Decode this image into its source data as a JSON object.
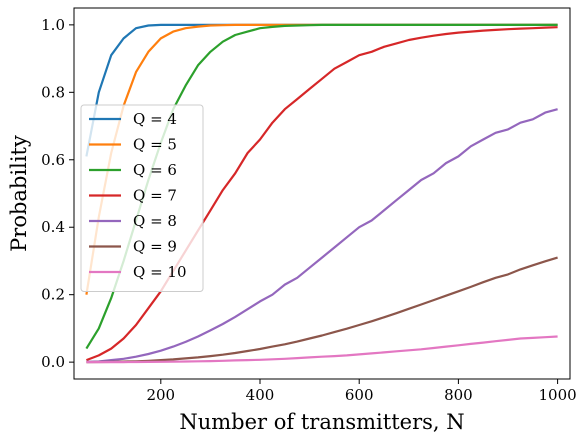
{
  "chart_data": {
    "type": "line",
    "title": "",
    "xlabel": "Number of transmitters, N",
    "ylabel": "Probability",
    "xlim": [
      25,
      1025
    ],
    "ylim": [
      -0.05,
      1.05
    ],
    "xticks": [
      200,
      400,
      600,
      800,
      1000
    ],
    "yticks": [
      0.0,
      0.2,
      0.4,
      0.6,
      0.8,
      1.0
    ],
    "xtick_labels": [
      "200",
      "400",
      "600",
      "800",
      "1000"
    ],
    "ytick_labels": [
      "0.0",
      "0.2",
      "0.4",
      "0.6",
      "0.8",
      "1.0"
    ],
    "grid": false,
    "legend_position": "center-left",
    "x": [
      50,
      75,
      100,
      125,
      150,
      175,
      200,
      225,
      250,
      275,
      300,
      325,
      350,
      375,
      400,
      425,
      450,
      475,
      500,
      525,
      550,
      575,
      600,
      625,
      650,
      675,
      700,
      725,
      750,
      775,
      800,
      825,
      850,
      875,
      900,
      925,
      950,
      975,
      1000
    ],
    "series": [
      {
        "name": "Q = 4",
        "color": "#1f77b4",
        "values": [
          0.61,
          0.8,
          0.91,
          0.96,
          0.99,
          0.998,
          1.0,
          1.0,
          1.0,
          1.0,
          1.0,
          1.0,
          1.0,
          1.0,
          1.0,
          1.0,
          1.0,
          1.0,
          1.0,
          1.0,
          1.0,
          1.0,
          1.0,
          1.0,
          1.0,
          1.0,
          1.0,
          1.0,
          1.0,
          1.0,
          1.0,
          1.0,
          1.0,
          1.0,
          1.0,
          1.0,
          1.0,
          1.0,
          1.0
        ]
      },
      {
        "name": "Q = 5",
        "color": "#ff7f0e",
        "values": [
          0.2,
          0.43,
          0.62,
          0.76,
          0.86,
          0.92,
          0.96,
          0.98,
          0.99,
          0.995,
          0.998,
          0.999,
          1.0,
          1.0,
          1.0,
          1.0,
          1.0,
          1.0,
          1.0,
          1.0,
          1.0,
          1.0,
          1.0,
          1.0,
          1.0,
          1.0,
          1.0,
          1.0,
          1.0,
          1.0,
          1.0,
          1.0,
          1.0,
          1.0,
          1.0,
          1.0,
          1.0,
          1.0,
          1.0
        ]
      },
      {
        "name": "Q = 6",
        "color": "#2ca02c",
        "values": [
          0.04,
          0.1,
          0.19,
          0.3,
          0.42,
          0.54,
          0.65,
          0.75,
          0.82,
          0.88,
          0.92,
          0.95,
          0.97,
          0.98,
          0.99,
          0.994,
          0.997,
          0.998,
          0.999,
          1.0,
          1.0,
          1.0,
          1.0,
          1.0,
          1.0,
          1.0,
          1.0,
          1.0,
          1.0,
          1.0,
          1.0,
          1.0,
          1.0,
          1.0,
          1.0,
          1.0,
          1.0,
          1.0,
          1.0
        ]
      },
      {
        "name": "Q = 7",
        "color": "#d62728",
        "values": [
          0.006,
          0.02,
          0.04,
          0.07,
          0.11,
          0.16,
          0.21,
          0.27,
          0.33,
          0.39,
          0.45,
          0.51,
          0.56,
          0.62,
          0.66,
          0.71,
          0.75,
          0.78,
          0.81,
          0.84,
          0.87,
          0.89,
          0.91,
          0.92,
          0.935,
          0.945,
          0.955,
          0.962,
          0.968,
          0.973,
          0.977,
          0.98,
          0.983,
          0.985,
          0.987,
          0.989,
          0.99,
          0.992,
          0.993
        ]
      },
      {
        "name": "Q = 8",
        "color": "#9467bd",
        "values": [
          0.0007,
          0.002,
          0.006,
          0.01,
          0.016,
          0.024,
          0.034,
          0.046,
          0.06,
          0.076,
          0.094,
          0.113,
          0.134,
          0.157,
          0.18,
          0.2,
          0.23,
          0.25,
          0.28,
          0.31,
          0.34,
          0.37,
          0.4,
          0.42,
          0.45,
          0.48,
          0.51,
          0.54,
          0.56,
          0.59,
          0.61,
          0.64,
          0.66,
          0.68,
          0.69,
          0.71,
          0.72,
          0.74,
          0.75
        ]
      },
      {
        "name": "Q = 9",
        "color": "#8c564b",
        "values": [
          0.0001,
          0.0003,
          0.0008,
          0.0015,
          0.0025,
          0.004,
          0.006,
          0.008,
          0.011,
          0.014,
          0.018,
          0.022,
          0.027,
          0.033,
          0.039,
          0.046,
          0.053,
          0.061,
          0.07,
          0.079,
          0.089,
          0.099,
          0.11,
          0.121,
          0.133,
          0.145,
          0.158,
          0.171,
          0.184,
          0.197,
          0.21,
          0.223,
          0.237,
          0.25,
          0.26,
          0.275,
          0.287,
          0.299,
          0.31
        ]
      },
      {
        "name": "Q = 10",
        "color": "#e377c2",
        "values": [
          0.0,
          0.0,
          0.0001,
          0.0002,
          0.0004,
          0.0007,
          0.001,
          0.0014,
          0.0019,
          0.0025,
          0.0032,
          0.004,
          0.005,
          0.006,
          0.007,
          0.0085,
          0.01,
          0.012,
          0.014,
          0.016,
          0.018,
          0.02,
          0.023,
          0.026,
          0.029,
          0.032,
          0.035,
          0.038,
          0.042,
          0.046,
          0.05,
          0.054,
          0.058,
          0.062,
          0.066,
          0.07,
          0.072,
          0.074,
          0.076
        ]
      }
    ]
  }
}
